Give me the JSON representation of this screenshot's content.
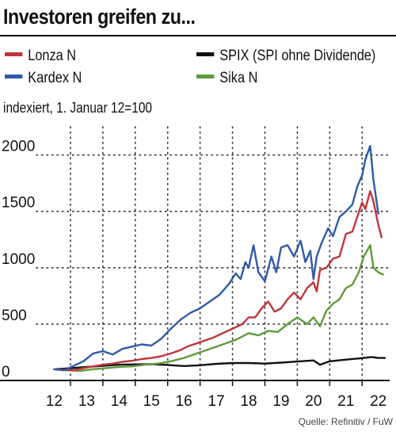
{
  "header": {
    "title": "Investoren greifen zu...",
    "subtitle": "indexiert, 1. Januar 12=100",
    "source": "Quelle: Refinitiv / FuW"
  },
  "chart_data": {
    "type": "line",
    "title": "Investoren greifen zu...",
    "ylabel": "indexiert, 1. Januar 12=100",
    "xlim": [
      2011.45,
      2022.35
    ],
    "ylim": [
      0,
      2250
    ],
    "x_ticks": [
      "12",
      "13",
      "14",
      "15",
      "16",
      "17",
      "18",
      "19",
      "20",
      "21",
      "22"
    ],
    "x_tick_values": [
      2012,
      2013,
      2014,
      2015,
      2016,
      2017,
      2018,
      2019,
      2020,
      2021,
      2022
    ],
    "y_ticks": [
      "0",
      "500",
      "1000",
      "1500",
      "2000"
    ],
    "y_tick_values": [
      0,
      500,
      1000,
      1500,
      2000
    ],
    "grid": "vertical-and-horizontal-dotted",
    "legend_position": "top",
    "series": [
      {
        "name": "Lonza N",
        "color": "#c0353c",
        "x": [
          2012.0,
          2012.3,
          2012.6,
          2012.9,
          2013.2,
          2013.5,
          2013.8,
          2014.1,
          2014.4,
          2014.7,
          2015.0,
          2015.3,
          2015.6,
          2015.9,
          2016.1,
          2016.3,
          2016.6,
          2016.9,
          2017.2,
          2017.5,
          2017.8,
          2018.0,
          2018.2,
          2018.4,
          2018.6,
          2018.8,
          2019.0,
          2019.2,
          2019.4,
          2019.6,
          2019.8,
          2020.0,
          2020.1,
          2020.2,
          2020.4,
          2020.6,
          2020.8,
          2021.0,
          2021.2,
          2021.35,
          2021.5,
          2021.6,
          2021.75,
          2021.85,
          2022.0,
          2022.1
        ],
        "y": [
          100,
          95,
          90,
          110,
          125,
          140,
          150,
          165,
          175,
          190,
          200,
          215,
          240,
          270,
          300,
          320,
          350,
          380,
          420,
          460,
          500,
          560,
          560,
          640,
          700,
          610,
          640,
          720,
          780,
          720,
          820,
          870,
          790,
          980,
          1000,
          1080,
          1100,
          1300,
          1320,
          1450,
          1580,
          1520,
          1680,
          1590,
          1380,
          1270
        ]
      },
      {
        "name": "Kardex N",
        "color": "#2e5aa8",
        "x": [
          2012.0,
          2012.3,
          2012.6,
          2012.9,
          2013.2,
          2013.5,
          2013.8,
          2014.1,
          2014.4,
          2014.7,
          2015.0,
          2015.3,
          2015.6,
          2015.9,
          2016.2,
          2016.5,
          2016.8,
          2017.1,
          2017.4,
          2017.6,
          2017.75,
          2017.9,
          2018.0,
          2018.15,
          2018.3,
          2018.5,
          2018.7,
          2018.85,
          2019.0,
          2019.2,
          2019.4,
          2019.6,
          2019.75,
          2019.9,
          2020.0,
          2020.1,
          2020.25,
          2020.45,
          2020.6,
          2020.8,
          2021.0,
          2021.2,
          2021.35,
          2021.5,
          2021.6,
          2021.75,
          2021.85,
          2022.0
        ],
        "y": [
          100,
          90,
          130,
          170,
          240,
          260,
          230,
          280,
          300,
          320,
          310,
          370,
          460,
          540,
          600,
          640,
          700,
          760,
          860,
          950,
          900,
          1050,
          1000,
          1200,
          960,
          880,
          1100,
          960,
          1180,
          1200,
          1100,
          1240,
          1050,
          1150,
          900,
          1100,
          1220,
          1350,
          1280,
          1450,
          1500,
          1560,
          1720,
          1820,
          1960,
          2080,
          1780,
          1480
        ]
      },
      {
        "name": "SPIX (SPI ohne Dividende)",
        "color": "#111111",
        "x": [
          2012.0,
          2012.5,
          2013.0,
          2013.5,
          2014.0,
          2014.5,
          2015.0,
          2015.5,
          2016.0,
          2016.5,
          2017.0,
          2017.5,
          2018.0,
          2018.5,
          2019.0,
          2019.5,
          2020.0,
          2020.2,
          2020.5,
          2021.0,
          2021.5,
          2021.8,
          2022.0,
          2022.2
        ],
        "y": [
          100,
          108,
          120,
          130,
          140,
          143,
          145,
          138,
          128,
          135,
          148,
          155,
          155,
          150,
          158,
          168,
          178,
          140,
          170,
          185,
          198,
          208,
          200,
          200
        ]
      },
      {
        "name": "Sika N",
        "color": "#5e9b3a",
        "x": [
          2012.0,
          2012.4,
          2012.8,
          2013.2,
          2013.6,
          2014.0,
          2014.4,
          2014.8,
          2015.2,
          2015.6,
          2016.0,
          2016.4,
          2016.8,
          2017.2,
          2017.6,
          2018.0,
          2018.3,
          2018.6,
          2018.9,
          2019.2,
          2019.5,
          2019.8,
          2020.0,
          2020.2,
          2020.4,
          2020.6,
          2020.8,
          2021.0,
          2021.2,
          2021.4,
          2021.55,
          2021.65,
          2021.75,
          2021.85,
          2022.0,
          2022.15
        ],
        "y": [
          100,
          90,
          85,
          100,
          110,
          120,
          125,
          140,
          150,
          170,
          200,
          240,
          280,
          320,
          360,
          420,
          400,
          440,
          430,
          500,
          560,
          500,
          560,
          480,
          620,
          680,
          720,
          820,
          850,
          960,
          1100,
          1150,
          1200,
          1000,
          960,
          940
        ]
      }
    ]
  }
}
